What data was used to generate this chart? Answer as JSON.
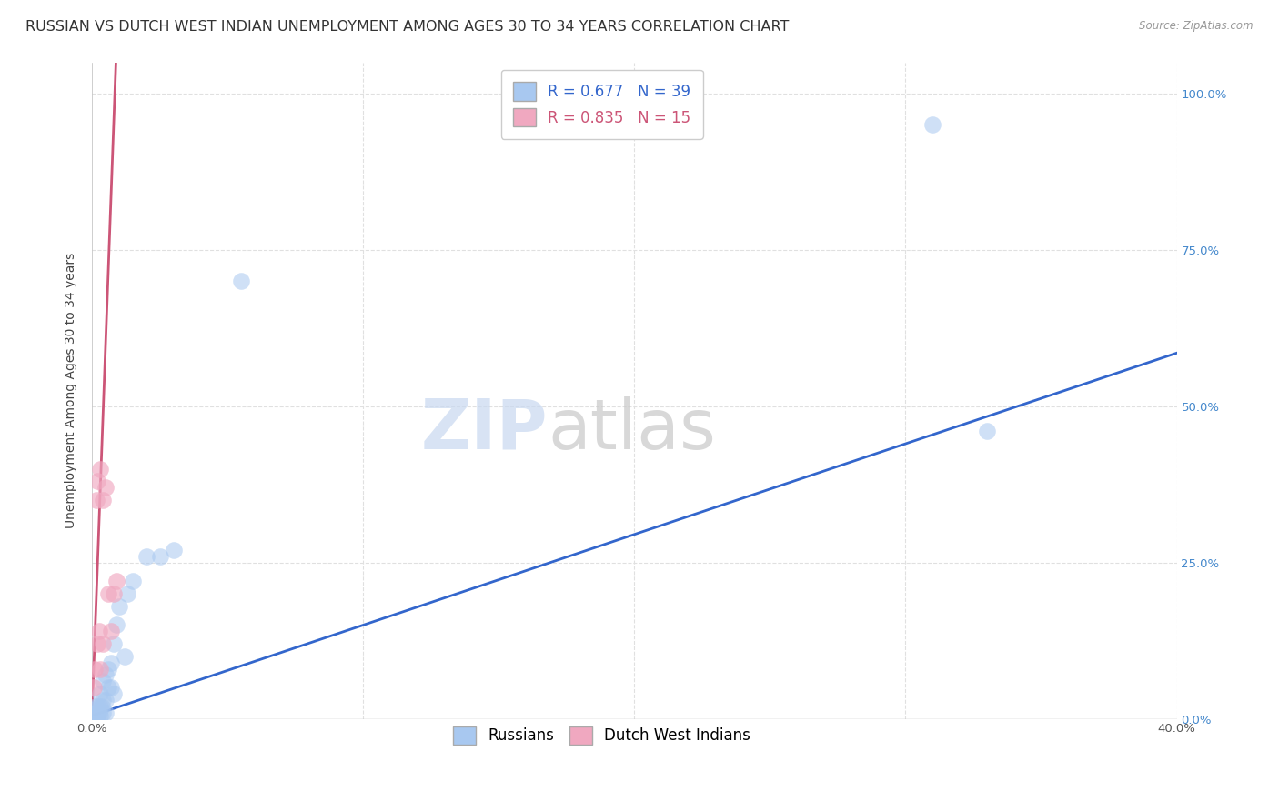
{
  "title": "RUSSIAN VS DUTCH WEST INDIAN UNEMPLOYMENT AMONG AGES 30 TO 34 YEARS CORRELATION CHART",
  "source": "Source: ZipAtlas.com",
  "ylabel": "Unemployment Among Ages 30 to 34 years",
  "watermark_zip": "ZIP",
  "watermark_atlas": "atlas",
  "russian_R": 0.677,
  "russian_N": 39,
  "dutch_R": 0.835,
  "dutch_N": 15,
  "russian_color": "#a8c8f0",
  "dutch_color": "#f0a8c0",
  "russian_line_color": "#3366cc",
  "dutch_line_color": "#cc5577",
  "background_color": "#ffffff",
  "grid_color": "#e0e0e0",
  "x_min": 0.0,
  "x_max": 0.4,
  "y_min": 0.0,
  "y_max": 1.05,
  "russians_x": [
    0.0005,
    0.0007,
    0.001,
    0.001,
    0.0012,
    0.0013,
    0.0015,
    0.0015,
    0.002,
    0.002,
    0.002,
    0.0025,
    0.003,
    0.003,
    0.003,
    0.0035,
    0.004,
    0.004,
    0.004,
    0.005,
    0.005,
    0.005,
    0.006,
    0.006,
    0.007,
    0.007,
    0.008,
    0.008,
    0.009,
    0.01,
    0.012,
    0.013,
    0.015,
    0.02,
    0.025,
    0.03,
    0.055,
    0.31,
    0.33
  ],
  "russians_y": [
    0.005,
    0.008,
    0.01,
    0.015,
    0.01,
    0.02,
    0.01,
    0.005,
    0.01,
    0.02,
    0.005,
    0.01,
    0.02,
    0.04,
    0.005,
    0.02,
    0.03,
    0.06,
    0.01,
    0.03,
    0.07,
    0.01,
    0.05,
    0.08,
    0.05,
    0.09,
    0.04,
    0.12,
    0.15,
    0.18,
    0.1,
    0.2,
    0.22,
    0.26,
    0.26,
    0.27,
    0.7,
    0.95,
    0.46
  ],
  "dutch_x": [
    0.0005,
    0.001,
    0.0015,
    0.0018,
    0.002,
    0.0025,
    0.003,
    0.003,
    0.004,
    0.004,
    0.005,
    0.006,
    0.007,
    0.008,
    0.009
  ],
  "dutch_y": [
    0.05,
    0.08,
    0.35,
    0.38,
    0.12,
    0.14,
    0.08,
    0.4,
    0.12,
    0.35,
    0.37,
    0.2,
    0.14,
    0.2,
    0.22
  ],
  "russian_slope": 1.45,
  "russian_intercept": 0.005,
  "dutch_slope": 120.0,
  "dutch_intercept": 0.01,
  "dutch_line_x_end": 0.0088,
  "title_fontsize": 11.5,
  "axis_label_fontsize": 10,
  "tick_fontsize": 9.5,
  "legend_fontsize": 12,
  "watermark_fontsize": 55,
  "watermark_color": "#c8d8f0",
  "watermark_color2": "#c8c8c8",
  "watermark_alpha": 0.7
}
